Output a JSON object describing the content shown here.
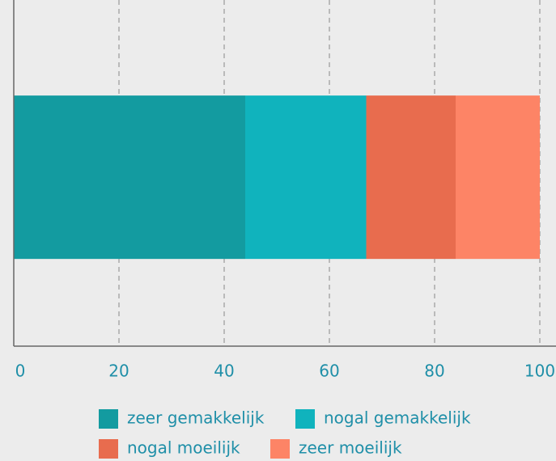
{
  "chart_data": {
    "type": "stacked-barh",
    "categories": [
      null
    ],
    "series": [
      {
        "name": "zeer gemakkelijk",
        "color": "#139ba0",
        "values": [
          44
        ]
      },
      {
        "name": "nogal gemakkelijk",
        "color": "#10b3bd",
        "values": [
          23
        ]
      },
      {
        "name": "nogal moeilijk",
        "color": "#e86c4e",
        "values": [
          17
        ]
      },
      {
        "name": "zeer moeilijk",
        "color": "#fd8466",
        "values": [
          16
        ]
      }
    ],
    "xlim": [
      0,
      100
    ],
    "xticks": [
      0,
      20,
      40,
      60,
      80,
      100
    ],
    "grid": true,
    "legend": "bottom"
  }
}
